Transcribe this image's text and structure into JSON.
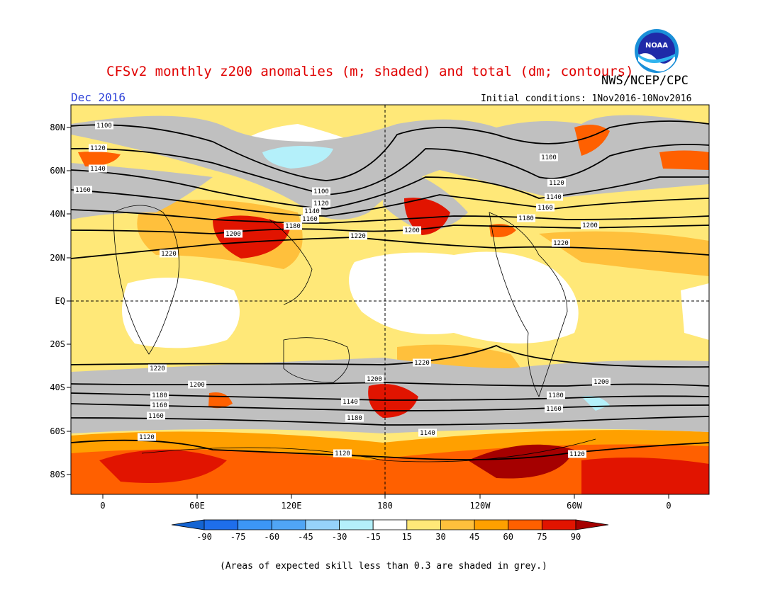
{
  "header": {
    "title": "CFSv2 monthly z200 anomalies (m; shaded) and total (dm; contours)",
    "month": "Dec 2016",
    "agency": "NWS/NCEP/CPC",
    "initial_conditions": "Initial conditions: 1Nov2016-10Nov2016",
    "logo_text": "NOAA"
  },
  "map": {
    "lat_labels": [
      "80N",
      "60N",
      "40N",
      "20N",
      "EQ",
      "20S",
      "40S",
      "60S",
      "80S"
    ],
    "lon_labels": [
      "0",
      "60E",
      "120E",
      "180",
      "120W",
      "60W",
      "0"
    ],
    "contour_labels": [
      "1100",
      "1120",
      "1140",
      "1160",
      "1100",
      "1120",
      "1140",
      "1160",
      "1180",
      "1200",
      "1220",
      "1100",
      "1120",
      "1140",
      "1160",
      "1180",
      "1200",
      "1220",
      "1200",
      "1220",
      "1220",
      "1200",
      "1200",
      "1220",
      "1180",
      "1160",
      "1140",
      "1180",
      "1160",
      "1200",
      "1180",
      "1160",
      "1120",
      "1140",
      "1120",
      "1120"
    ]
  },
  "colorbar": {
    "labels": [
      "-90",
      "-75",
      "-60",
      "-45",
      "-30",
      "-15",
      "15",
      "30",
      "45",
      "60",
      "75",
      "90"
    ],
    "colors": [
      "#1464d2",
      "#1e6eeb",
      "#3c96f5",
      "#50a5f5",
      "#96d2fa",
      "#b4f0fa",
      "#ffffff",
      "#ffe878",
      "#ffc03c",
      "#ffa000",
      "#ff6000",
      "#e11400",
      "#a50000"
    ]
  },
  "footnote": "(Areas of expected skill less than 0.3 are shaded in grey.)"
}
